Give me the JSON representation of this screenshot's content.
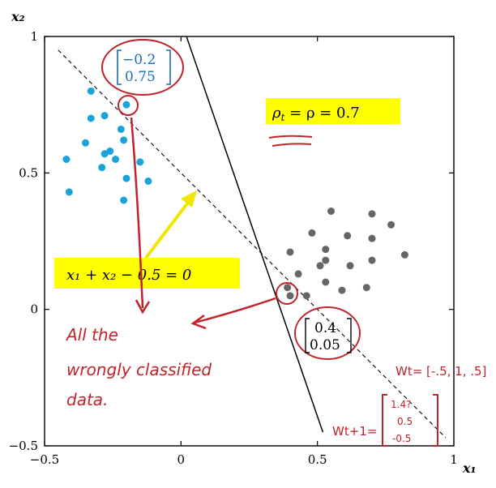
{
  "chart_data": {
    "type": "scatter",
    "xlim": [
      -0.5,
      1
    ],
    "ylim": [
      -0.5,
      1
    ],
    "xticks": [
      "−0.5",
      "0",
      "0.5",
      "1"
    ],
    "yticks": [
      "1",
      "0.5",
      "0",
      "−0.5"
    ],
    "xlabel": "x₁",
    "ylabel": "x₂",
    "grid": false,
    "series": [
      {
        "color": "#1aa3d9",
        "points": [
          [
            -0.33,
            0.8
          ],
          [
            -0.2,
            0.75
          ],
          [
            -0.33,
            0.7
          ],
          [
            -0.28,
            0.71
          ],
          [
            -0.22,
            0.66
          ],
          [
            -0.21,
            0.62
          ],
          [
            -0.35,
            0.61
          ],
          [
            -0.26,
            0.58
          ],
          [
            -0.28,
            0.57
          ],
          [
            -0.42,
            0.55
          ],
          [
            -0.24,
            0.55
          ],
          [
            -0.15,
            0.54
          ],
          [
            -0.29,
            0.52
          ],
          [
            -0.2,
            0.48
          ],
          [
            -0.12,
            0.47
          ],
          [
            -0.41,
            0.43
          ],
          [
            -0.21,
            0.4
          ]
        ]
      },
      {
        "color": "#666666",
        "points": [
          [
            0.55,
            0.36
          ],
          [
            0.7,
            0.35
          ],
          [
            0.77,
            0.31
          ],
          [
            0.48,
            0.28
          ],
          [
            0.61,
            0.27
          ],
          [
            0.7,
            0.26
          ],
          [
            0.4,
            0.21
          ],
          [
            0.53,
            0.22
          ],
          [
            0.82,
            0.2
          ],
          [
            0.7,
            0.18
          ],
          [
            0.53,
            0.18
          ],
          [
            0.62,
            0.16
          ],
          [
            0.51,
            0.16
          ],
          [
            0.43,
            0.13
          ],
          [
            0.53,
            0.1
          ],
          [
            0.68,
            0.08
          ],
          [
            0.39,
            0.08
          ],
          [
            0.59,
            0.07
          ],
          [
            0.46,
            0.05
          ],
          [
            0.4,
            0.05
          ]
        ]
      }
    ],
    "lines": [
      {
        "style": "dashed",
        "from": [
          -0.45,
          0.95
        ],
        "to": [
          0.97,
          -0.47
        ]
      },
      {
        "style": "solid",
        "from": [
          0.02,
          1.0
        ],
        "to": [
          0.52,
          -0.45
        ]
      }
    ]
  },
  "annotations": {
    "rho_label": "ρt = ρ = 0.7",
    "rho_rho": "ρ",
    "rho_t": "t",
    "rho_rest": " = ρ = 0.7",
    "equation": "x₁ + x₂ − 0.5 = 0",
    "blue_vec_top": "−0.2",
    "blue_vec_bottom": "0.75",
    "black_vec_top": "0.4",
    "black_vec_bottom": "0.05",
    "note_line1": "All  the",
    "note_line2": "wrongly  classified",
    "note_line3": "data.",
    "wt_label": "Wt= [-.5, 1, .5]",
    "wt1_label": "Wt+1=",
    "wt1_vals": [
      "1.4?",
      "0.5",
      "-0.5"
    ]
  },
  "colors": {
    "blue_points": "#1aa3d9",
    "gray_points": "#666666",
    "highlight": "#ffff00",
    "ink_red": "#c0232a",
    "arrow_yellow": "#f0e600"
  }
}
